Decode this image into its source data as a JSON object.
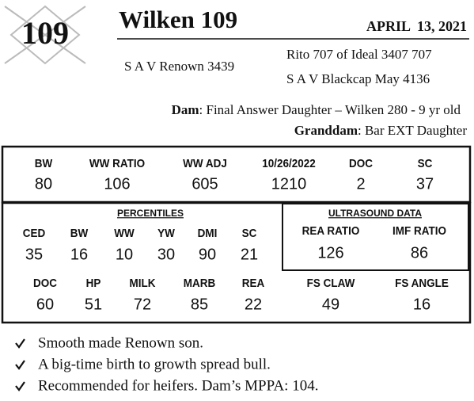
{
  "lot": "109",
  "name": "Wilken 109",
  "date": "APRIL  13, 2021",
  "sire": "S A V Renown 3439",
  "sire_sire": "Rito 707 of Ideal 3407 707",
  "sire_dam": "S A V Blackcap May 4136",
  "dam": {
    "label": "Dam",
    "text": ": Final Answer Daughter – Wilken 280 - 9 yr old"
  },
  "granddam": {
    "label": "Granddam",
    "text": ": Bar EXT Daughter"
  },
  "weights": {
    "labels": [
      "BW",
      "WW RATIO",
      "WW ADJ",
      "10/26/2022",
      "DOC",
      "SC"
    ],
    "values": [
      80,
      106,
      605,
      1210,
      2,
      37
    ]
  },
  "percentiles": {
    "title": "PERCENTILES",
    "labels": [
      "CED",
      "BW",
      "WW",
      "YW",
      "DMI",
      "SC"
    ],
    "values": [
      35,
      16,
      10,
      30,
      90,
      21
    ]
  },
  "ultrasound": {
    "title": "ULTRASOUND DATA",
    "labels": [
      "REA RATIO",
      "IMF RATIO"
    ],
    "values": [
      126,
      86
    ]
  },
  "percentiles_2": {
    "labels": [
      "DOC",
      "HP",
      "MILK",
      "MARB",
      "REA"
    ],
    "values": [
      60,
      51,
      72,
      85,
      22
    ]
  },
  "feet": {
    "labels": [
      "FS CLAW",
      "FS ANGLE"
    ],
    "values": [
      49,
      16
    ]
  },
  "notes": [
    "Smooth made Renown son.",
    "A big-time birth to growth spread bull.",
    "Recommended for heifers.  Dam’s MPPA: 104."
  ]
}
